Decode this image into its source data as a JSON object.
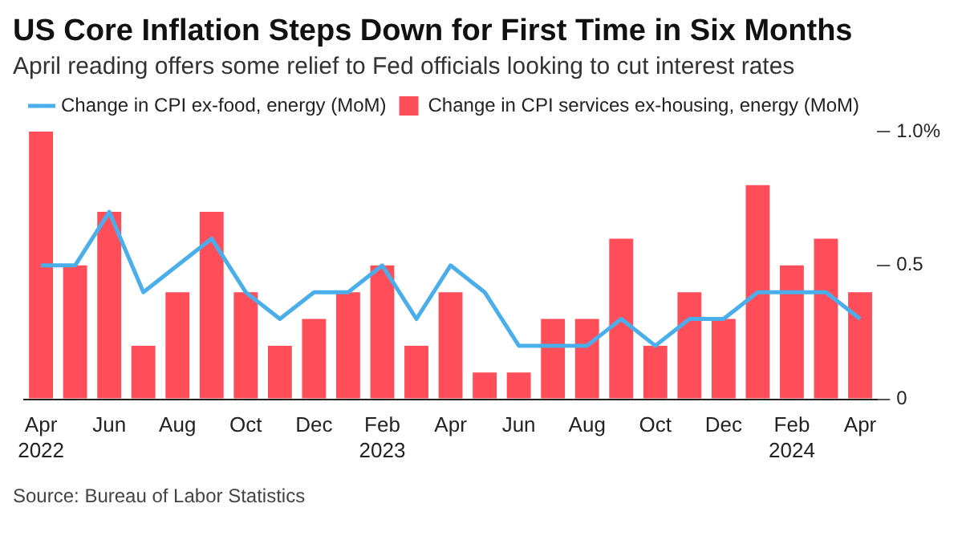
{
  "chart_data": {
    "type": "bar",
    "title": "US Core Inflation Steps Down for First Time in Six Months",
    "subtitle": "April reading offers some relief to Fed officials looking to cut interest rates",
    "categories": [
      "Apr 2022",
      null,
      "Jun",
      null,
      "Aug",
      null,
      "Oct",
      null,
      "Dec",
      null,
      "Feb 2023",
      null,
      "Apr",
      null,
      "Jun",
      null,
      "Aug",
      null,
      "Oct",
      null,
      "Dec",
      null,
      "Feb 2024",
      null,
      "Apr"
    ],
    "series": [
      {
        "name": "Change in CPI ex-food, energy (MoM)",
        "type": "line",
        "color": "#4aaeea",
        "values": [
          0.5,
          0.5,
          0.7,
          0.4,
          0.5,
          0.6,
          0.4,
          0.3,
          0.4,
          0.4,
          0.5,
          0.3,
          0.5,
          0.4,
          0.2,
          0.2,
          0.2,
          0.3,
          0.2,
          0.3,
          0.3,
          0.4,
          0.4,
          0.4,
          0.3
        ]
      },
      {
        "name": "Change in CPI services ex-housing, energy (MoM)",
        "color": "#ff4d5a",
        "values": [
          1.0,
          0.5,
          0.7,
          0.2,
          0.4,
          0.7,
          0.4,
          0.2,
          0.3,
          0.4,
          0.5,
          0.2,
          0.4,
          0.1,
          0.1,
          0.3,
          0.3,
          0.6,
          0.2,
          0.4,
          0.3,
          0.8,
          0.5,
          0.6,
          0.4
        ]
      }
    ],
    "ylim": [
      0,
      1.0
    ],
    "yticks": [
      0,
      0.5,
      {
        "value": 1.0,
        "label": "1.0%"
      }
    ],
    "legend": "top left",
    "marker": "none",
    "annotations": [
      "Source: Bureau of Labor Statistics"
    ]
  }
}
